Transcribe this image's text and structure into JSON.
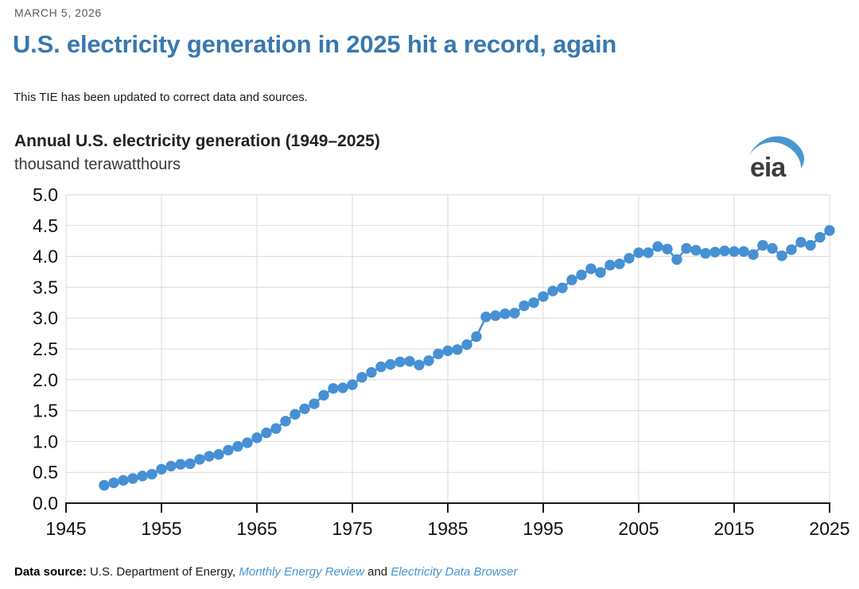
{
  "header": {
    "date": "MARCH 5, 2026",
    "title": "U.S. electricity generation in 2025 hit a record, again",
    "note": "This TIE has been updated to correct data and sources."
  },
  "chart": {
    "title": "Annual U.S. electricity generation (1949–2025)",
    "subtitle": "thousand terawatthours",
    "logo": "eia"
  },
  "footer": {
    "label": "Data source:",
    "source_text": " U.S. Department of Energy, ",
    "link1": "Monthly Energy Review",
    "conjunction": " and ",
    "link2": "Electricity Data Browser"
  },
  "colors": {
    "title_blue": "#3878AE",
    "marker_blue": "#4690D4",
    "link_blue": "#4596D3",
    "grid_gray": "#D9D9D9",
    "axis_dark": "#1a1a1a",
    "date_gray": "#595959"
  },
  "chart_data": {
    "type": "line",
    "title": "Annual U.S. electricity generation (1949–2025)",
    "xlabel": "",
    "ylabel": "thousand terawatthours",
    "xlim": [
      1945,
      2025
    ],
    "ylim": [
      0.0,
      5.0
    ],
    "ytick_step": 0.5,
    "xticks": [
      1945,
      1955,
      1965,
      1975,
      1985,
      1995,
      2005,
      2015,
      2025
    ],
    "grid": true,
    "legend": "none",
    "marker_color": "#4690D4",
    "x": [
      1949,
      1950,
      1951,
      1952,
      1953,
      1954,
      1955,
      1956,
      1957,
      1958,
      1959,
      1960,
      1961,
      1962,
      1963,
      1964,
      1965,
      1966,
      1967,
      1968,
      1969,
      1970,
      1971,
      1972,
      1973,
      1974,
      1975,
      1976,
      1977,
      1978,
      1979,
      1980,
      1981,
      1982,
      1983,
      1984,
      1985,
      1986,
      1987,
      1988,
      1989,
      1990,
      1991,
      1992,
      1993,
      1994,
      1995,
      1996,
      1997,
      1998,
      1999,
      2000,
      2001,
      2002,
      2003,
      2004,
      2005,
      2006,
      2007,
      2008,
      2009,
      2010,
      2011,
      2012,
      2013,
      2014,
      2015,
      2016,
      2017,
      2018,
      2019,
      2020,
      2021,
      2022,
      2023,
      2024,
      2025
    ],
    "values": [
      0.29,
      0.33,
      0.37,
      0.4,
      0.44,
      0.47,
      0.55,
      0.6,
      0.63,
      0.64,
      0.71,
      0.76,
      0.79,
      0.86,
      0.92,
      0.98,
      1.06,
      1.14,
      1.21,
      1.33,
      1.44,
      1.53,
      1.61,
      1.75,
      1.86,
      1.87,
      1.92,
      2.04,
      2.12,
      2.21,
      2.25,
      2.29,
      2.3,
      2.24,
      2.31,
      2.42,
      2.47,
      2.49,
      2.57,
      2.7,
      3.02,
      3.04,
      3.07,
      3.08,
      3.2,
      3.25,
      3.35,
      3.44,
      3.49,
      3.62,
      3.7,
      3.8,
      3.74,
      3.86,
      3.88,
      3.97,
      4.06,
      4.06,
      4.16,
      4.12,
      3.95,
      4.13,
      4.1,
      4.05,
      4.07,
      4.09,
      4.08,
      4.08,
      4.03,
      4.18,
      4.13,
      4.01,
      4.11,
      4.23,
      4.18,
      4.31,
      4.42
    ]
  }
}
